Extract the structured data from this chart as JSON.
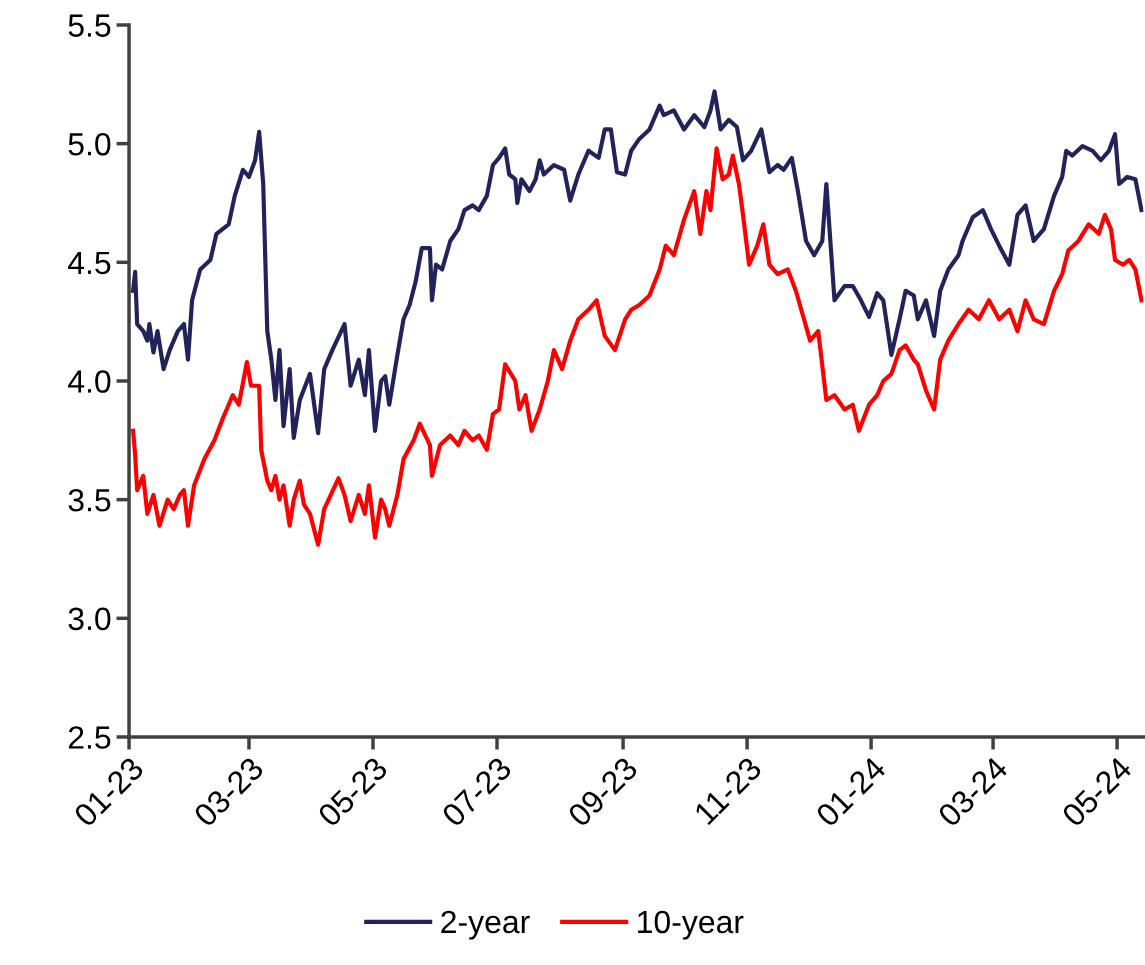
{
  "chart_data": {
    "type": "line",
    "xlim": [
      "2023-01-01",
      "2024-05-14"
    ],
    "xticks": [
      {
        "value": "2023-01-01",
        "label": "01-23"
      },
      {
        "value": "2023-03-01",
        "label": "03-23"
      },
      {
        "value": "2023-05-01",
        "label": "05-23"
      },
      {
        "value": "2023-07-01",
        "label": "07-23"
      },
      {
        "value": "2023-09-01",
        "label": "09-23"
      },
      {
        "value": "2023-11-01",
        "label": "11-23"
      },
      {
        "value": "2024-01-01",
        "label": "01-24"
      },
      {
        "value": "2024-03-01",
        "label": "03-24"
      },
      {
        "value": "2024-05-01",
        "label": "05-24"
      }
    ],
    "ylim": [
      2.5,
      5.5
    ],
    "yticks": [
      {
        "value": 2.5,
        "label": "2.5"
      },
      {
        "value": 3,
        "label": "3.0"
      },
      {
        "value": 3.5,
        "label": "3.5"
      },
      {
        "value": 4,
        "label": "4.0"
      },
      {
        "value": 4.5,
        "label": "4.5"
      },
      {
        "value": 5,
        "label": "5.0"
      },
      {
        "value": 5.5,
        "label": "5.5"
      }
    ],
    "grid": false,
    "legend": "bottom",
    "marker": "none",
    "line_style": "solid",
    "series": [
      {
        "name": "2-year",
        "color": "#23235c",
        "x": [
          "2023-01-03",
          "2023-01-04",
          "2023-01-05",
          "2023-01-08",
          "2023-01-10",
          "2023-01-11",
          "2023-01-13",
          "2023-01-15",
          "2023-01-18",
          "2023-01-21",
          "2023-01-25",
          "2023-01-28",
          "2023-01-30",
          "2023-02-01",
          "2023-02-05",
          "2023-02-10",
          "2023-02-13",
          "2023-02-19",
          "2023-02-22",
          "2023-02-26",
          "2023-03-01",
          "2023-03-04",
          "2023-03-06",
          "2023-03-08",
          "2023-03-10",
          "2023-03-12",
          "2023-03-14",
          "2023-03-16",
          "2023-03-18",
          "2023-03-21",
          "2023-03-23",
          "2023-03-26",
          "2023-03-31",
          "2023-04-04",
          "2023-04-07",
          "2023-04-11",
          "2023-04-17",
          "2023-04-20",
          "2023-04-24",
          "2023-04-27",
          "2023-04-29",
          "2023-05-02",
          "2023-05-05",
          "2023-05-07",
          "2023-05-09",
          "2023-05-13",
          "2023-05-16",
          "2023-05-19",
          "2023-05-22",
          "2023-05-25",
          "2023-05-29",
          "2023-05-30",
          "2023-06-01",
          "2023-06-04",
          "2023-06-08",
          "2023-06-12",
          "2023-06-15",
          "2023-06-19",
          "2023-06-22",
          "2023-06-26",
          "2023-06-29",
          "2023-07-02",
          "2023-07-05",
          "2023-07-07",
          "2023-07-10",
          "2023-07-11",
          "2023-07-13",
          "2023-07-17",
          "2023-07-20",
          "2023-07-22",
          "2023-07-24",
          "2023-07-29",
          "2023-08-03",
          "2023-08-06",
          "2023-08-10",
          "2023-08-15",
          "2023-08-20",
          "2023-08-23",
          "2023-08-26",
          "2023-08-29",
          "2023-09-02",
          "2023-09-05",
          "2023-09-09",
          "2023-09-14",
          "2023-09-19",
          "2023-09-21",
          "2023-09-26",
          "2023-10-01",
          "2023-10-06",
          "2023-10-11",
          "2023-10-14",
          "2023-10-16",
          "2023-10-19",
          "2023-10-23",
          "2023-10-27",
          "2023-10-30",
          "2023-11-03",
          "2023-11-08",
          "2023-11-12",
          "2023-11-16",
          "2023-11-19",
          "2023-11-23",
          "2023-11-26",
          "2023-11-30",
          "2023-12-04",
          "2023-12-08",
          "2023-12-10",
          "2023-12-14",
          "2023-12-19",
          "2023-12-23",
          "2023-12-27",
          "2023-12-31",
          "2024-01-04",
          "2024-01-07",
          "2024-01-11",
          "2024-01-15",
          "2024-01-18",
          "2024-01-22",
          "2024-01-24",
          "2024-01-28",
          "2024-02-01",
          "2024-02-04",
          "2024-02-08",
          "2024-02-13",
          "2024-02-15",
          "2024-02-20",
          "2024-02-25",
          "2024-02-29",
          "2024-03-04",
          "2024-03-09",
          "2024-03-13",
          "2024-03-17",
          "2024-03-21",
          "2024-03-26",
          "2024-03-31",
          "2024-04-04",
          "2024-04-06",
          "2024-04-09",
          "2024-04-14",
          "2024-04-19",
          "2024-04-23",
          "2024-04-27",
          "2024-04-30",
          "2024-05-02",
          "2024-05-06",
          "2024-05-10",
          "2024-05-13"
        ],
        "values": [
          4.38,
          4.46,
          4.24,
          4.21,
          4.17,
          4.24,
          4.12,
          4.21,
          4.05,
          4.13,
          4.21,
          4.24,
          4.09,
          4.34,
          4.47,
          4.51,
          4.62,
          4.66,
          4.78,
          4.89,
          4.86,
          4.93,
          5.05,
          4.83,
          4.21,
          4.09,
          3.92,
          4.13,
          3.81,
          4.05,
          3.76,
          3.92,
          4.03,
          3.78,
          4.05,
          4.13,
          4.24,
          3.98,
          4.09,
          3.94,
          4.13,
          3.79,
          4.0,
          4.02,
          3.9,
          4.11,
          4.26,
          4.32,
          4.42,
          4.56,
          4.56,
          4.34,
          4.49,
          4.47,
          4.59,
          4.64,
          4.72,
          4.74,
          4.72,
          4.78,
          4.91,
          4.94,
          4.98,
          4.87,
          4.85,
          4.75,
          4.85,
          4.8,
          4.85,
          4.93,
          4.87,
          4.91,
          4.89,
          4.76,
          4.87,
          4.97,
          4.94,
          5.06,
          5.06,
          4.88,
          4.87,
          4.97,
          5.02,
          5.06,
          5.16,
          5.12,
          5.14,
          5.06,
          5.12,
          5.07,
          5.14,
          5.22,
          5.06,
          5.1,
          5.07,
          4.93,
          4.97,
          5.06,
          4.88,
          4.91,
          4.89,
          4.94,
          4.8,
          4.59,
          4.53,
          4.59,
          4.83,
          4.34,
          4.4,
          4.4,
          4.34,
          4.27,
          4.37,
          4.34,
          4.11,
          4.26,
          4.38,
          4.36,
          4.26,
          4.34,
          4.19,
          4.38,
          4.47,
          4.53,
          4.59,
          4.69,
          4.72,
          4.64,
          4.57,
          4.49,
          4.7,
          4.74,
          4.59,
          4.64,
          4.78,
          4.86,
          4.97,
          4.95,
          4.99,
          4.97,
          4.93,
          4.97,
          5.04,
          4.83,
          4.86,
          4.85,
          4.72
        ]
      },
      {
        "name": "10-year",
        "color": "#ff0000",
        "x": [
          "2023-01-03",
          "2023-01-04",
          "2023-01-05",
          "2023-01-08",
          "2023-01-10",
          "2023-01-13",
          "2023-01-16",
          "2023-01-20",
          "2023-01-23",
          "2023-01-26",
          "2023-01-28",
          "2023-01-30",
          "2023-02-02",
          "2023-02-07",
          "2023-02-12",
          "2023-02-16",
          "2023-02-21",
          "2023-02-24",
          "2023-02-28",
          "2023-03-02",
          "2023-03-06",
          "2023-03-07",
          "2023-03-10",
          "2023-03-12",
          "2023-03-14",
          "2023-03-16",
          "2023-03-18",
          "2023-03-21",
          "2023-03-23",
          "2023-03-26",
          "2023-03-28",
          "2023-03-31",
          "2023-04-04",
          "2023-04-07",
          "2023-04-14",
          "2023-04-17",
          "2023-04-20",
          "2023-04-24",
          "2023-04-27",
          "2023-04-29",
          "2023-05-02",
          "2023-05-05",
          "2023-05-07",
          "2023-05-09",
          "2023-05-13",
          "2023-05-16",
          "2023-05-21",
          "2023-05-24",
          "2023-05-29",
          "2023-05-30",
          "2023-06-03",
          "2023-06-08",
          "2023-06-12",
          "2023-06-15",
          "2023-06-19",
          "2023-06-22",
          "2023-06-26",
          "2023-06-29",
          "2023-07-02",
          "2023-07-05",
          "2023-07-10",
          "2023-07-12",
          "2023-07-15",
          "2023-07-18",
          "2023-07-22",
          "2023-07-26",
          "2023-07-29",
          "2023-08-02",
          "2023-08-06",
          "2023-08-10",
          "2023-08-15",
          "2023-08-19",
          "2023-08-23",
          "2023-08-28",
          "2023-09-02",
          "2023-09-05",
          "2023-09-09",
          "2023-09-14",
          "2023-09-19",
          "2023-09-22",
          "2023-09-26",
          "2023-10-01",
          "2023-10-06",
          "2023-10-09",
          "2023-10-12",
          "2023-10-14",
          "2023-10-17",
          "2023-10-20",
          "2023-10-23",
          "2023-10-25",
          "2023-10-28",
          "2023-10-30",
          "2023-11-02",
          "2023-11-06",
          "2023-11-09",
          "2023-11-12",
          "2023-11-16",
          "2023-11-21",
          "2023-11-25",
          "2023-11-29",
          "2023-12-02",
          "2023-12-06",
          "2023-12-10",
          "2023-12-14",
          "2023-12-19",
          "2023-12-23",
          "2023-12-26",
          "2023-12-31",
          "2024-01-04",
          "2024-01-07",
          "2024-01-11",
          "2024-01-15",
          "2024-01-18",
          "2024-01-22",
          "2024-01-24",
          "2024-01-28",
          "2024-02-01",
          "2024-02-04",
          "2024-02-08",
          "2024-02-13",
          "2024-02-18",
          "2024-02-23",
          "2024-02-28",
          "2024-03-04",
          "2024-03-09",
          "2024-03-13",
          "2024-03-17",
          "2024-03-21",
          "2024-03-26",
          "2024-03-31",
          "2024-04-04",
          "2024-04-07",
          "2024-04-12",
          "2024-04-17",
          "2024-04-22",
          "2024-04-25",
          "2024-04-28",
          "2024-04-30",
          "2024-05-04",
          "2024-05-07",
          "2024-05-10",
          "2024-05-13"
        ],
        "values": [
          3.79,
          3.69,
          3.54,
          3.6,
          3.44,
          3.52,
          3.39,
          3.5,
          3.46,
          3.52,
          3.54,
          3.39,
          3.56,
          3.67,
          3.75,
          3.84,
          3.94,
          3.9,
          4.08,
          3.98,
          3.98,
          3.71,
          3.58,
          3.54,
          3.6,
          3.5,
          3.56,
          3.39,
          3.5,
          3.58,
          3.48,
          3.44,
          3.31,
          3.46,
          3.59,
          3.52,
          3.41,
          3.52,
          3.44,
          3.56,
          3.34,
          3.5,
          3.46,
          3.39,
          3.52,
          3.67,
          3.75,
          3.82,
          3.73,
          3.6,
          3.73,
          3.77,
          3.73,
          3.79,
          3.75,
          3.77,
          3.71,
          3.86,
          3.88,
          4.07,
          4.0,
          3.88,
          3.94,
          3.79,
          3.88,
          4.0,
          4.13,
          4.05,
          4.17,
          4.26,
          4.3,
          4.34,
          4.19,
          4.13,
          4.26,
          4.3,
          4.32,
          4.36,
          4.47,
          4.57,
          4.53,
          4.68,
          4.8,
          4.62,
          4.8,
          4.72,
          4.98,
          4.85,
          4.87,
          4.95,
          4.83,
          4.7,
          4.49,
          4.57,
          4.66,
          4.49,
          4.45,
          4.47,
          4.38,
          4.26,
          4.17,
          4.21,
          3.92,
          3.94,
          3.88,
          3.9,
          3.79,
          3.9,
          3.94,
          4.0,
          4.03,
          4.13,
          4.15,
          4.09,
          4.07,
          3.96,
          3.88,
          4.09,
          4.17,
          4.24,
          4.3,
          4.26,
          4.34,
          4.26,
          4.3,
          4.21,
          4.34,
          4.26,
          4.24,
          4.38,
          4.45,
          4.55,
          4.59,
          4.66,
          4.62,
          4.7,
          4.64,
          4.51,
          4.49,
          4.51,
          4.47,
          4.34
        ]
      }
    ]
  }
}
